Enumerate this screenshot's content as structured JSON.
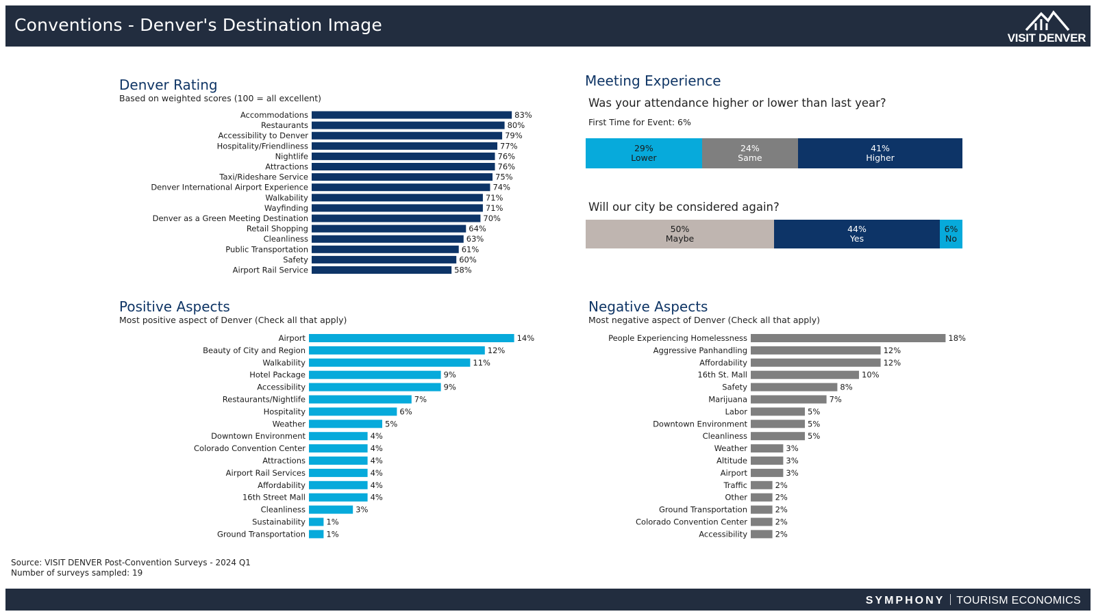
{
  "header": {
    "title": "Conventions - Denver's Destination Image",
    "logo_text": "VISIT DENVER"
  },
  "footer": {
    "brand_primary": "SYMPHONY",
    "brand_secondary": "TOURISM ECONOMICS"
  },
  "source": {
    "line1": "Source: VISIT DENVER Post-Convention Surveys - 2024 Q1",
    "line2": "Number of surveys sampled: 19"
  },
  "colors": {
    "navy": "#0d3467",
    "cyan": "#07aadb",
    "gray": "#7f7f7f",
    "light_gray": "#bfb5b0",
    "header_bg": "#222d3f"
  },
  "rating": {
    "title": "Denver Rating",
    "subtitle": "Based on weighted scores (100 = all excellent)"
  },
  "positive": {
    "title": "Positive Aspects",
    "subtitle": "Most positive aspect of Denver (Check all that apply)"
  },
  "negative": {
    "title": "Negative Aspects",
    "subtitle": "Most negative aspect of Denver (Check all that apply)"
  },
  "meeting": {
    "title": "Meeting Experience",
    "q1": "Was your attendance higher or lower than last year?",
    "first_time": "First Time for Event: 6%",
    "attendance": [
      {
        "pct": "29%",
        "label": "Lower",
        "value": 29,
        "color": "#07aadb",
        "text_color": "#1a1a1a"
      },
      {
        "pct": "24%",
        "label": "Same",
        "value": 24,
        "color": "#7f7f7f",
        "text_color": "#ffffff"
      },
      {
        "pct": "41%",
        "label": "Higher",
        "value": 41,
        "color": "#0d3467",
        "text_color": "#ffffff"
      }
    ],
    "q2": "Will our city be considered again?",
    "considered": [
      {
        "pct": "50%",
        "label": "Maybe",
        "value": 50,
        "color": "#bfb5b0",
        "text_color": "#1a1a1a"
      },
      {
        "pct": "44%",
        "label": "Yes",
        "value": 44,
        "color": "#0d3467",
        "text_color": "#ffffff"
      },
      {
        "pct": "6%",
        "label": "No",
        "value": 6,
        "color": "#07aadb",
        "text_color": "#1a1a1a"
      }
    ]
  },
  "chart_data": [
    {
      "type": "bar",
      "orientation": "horizontal",
      "title": "Denver Rating",
      "categories": [
        "Accommodations",
        "Restaurants",
        "Accessibility to Denver",
        "Hospitality/Friendliness",
        "Nightlife",
        "Attractions",
        "Taxi/Rideshare Service",
        "Denver International Airport Experience",
        "Walkability",
        "Wayfinding",
        "Denver as a Green Meeting Destination",
        "Retail Shopping",
        "Cleanliness",
        "Public Transportation",
        "Safety",
        "Airport Rail Service"
      ],
      "values": [
        83,
        80,
        79,
        77,
        76,
        76,
        75,
        74,
        71,
        71,
        70,
        64,
        63,
        61,
        60,
        58
      ],
      "labels": [
        "83%",
        "80%",
        "79%",
        "77%",
        "76%",
        "76%",
        "75%",
        "74%",
        "71%",
        "71%",
        "70%",
        "64%",
        "63%",
        "61%",
        "60%",
        "58%"
      ],
      "color": "#0d3467"
    },
    {
      "type": "bar",
      "orientation": "horizontal",
      "title": "Positive Aspects",
      "categories": [
        "Airport",
        "Beauty of City and Region",
        "Walkability",
        "Hotel Package",
        "Accessibility",
        "Restaurants/Nightlife",
        "Hospitality",
        "Weather",
        "Downtown Environment",
        "Colorado Convention Center",
        "Attractions",
        "Airport Rail Services",
        "Affordability",
        "16th Street Mall",
        "Cleanliness",
        "Sustainability",
        "Ground Transportation"
      ],
      "values": [
        14,
        12,
        11,
        9,
        9,
        7,
        6,
        5,
        4,
        4,
        4,
        4,
        4,
        4,
        3,
        1,
        1
      ],
      "labels": [
        "14%",
        "12%",
        "11%",
        "9%",
        "9%",
        "7%",
        "6%",
        "5%",
        "4%",
        "4%",
        "4%",
        "4%",
        "4%",
        "4%",
        "3%",
        "1%",
        "1%"
      ],
      "color": "#07aadb"
    },
    {
      "type": "bar",
      "orientation": "horizontal",
      "title": "Negative Aspects",
      "categories": [
        "People Experiencing Homelessness",
        "Aggressive Panhandling",
        "Affordability",
        "16th St. Mall",
        "Safety",
        "Marijuana",
        "Labor",
        "Downtown Environment",
        "Cleanliness",
        "Weather",
        "Altitude",
        "Airport",
        "Traffic",
        "Other",
        "Ground Transportation",
        "Colorado Convention Center",
        "Accessibility"
      ],
      "values": [
        18,
        12,
        12,
        10,
        8,
        7,
        5,
        5,
        5,
        3,
        3,
        3,
        2,
        2,
        2,
        2,
        2
      ],
      "labels": [
        "18%",
        "12%",
        "12%",
        "10%",
        "8%",
        "7%",
        "5%",
        "5%",
        "5%",
        "3%",
        "3%",
        "3%",
        "2%",
        "2%",
        "2%",
        "2%",
        "2%"
      ],
      "color": "#7f7f7f"
    }
  ]
}
